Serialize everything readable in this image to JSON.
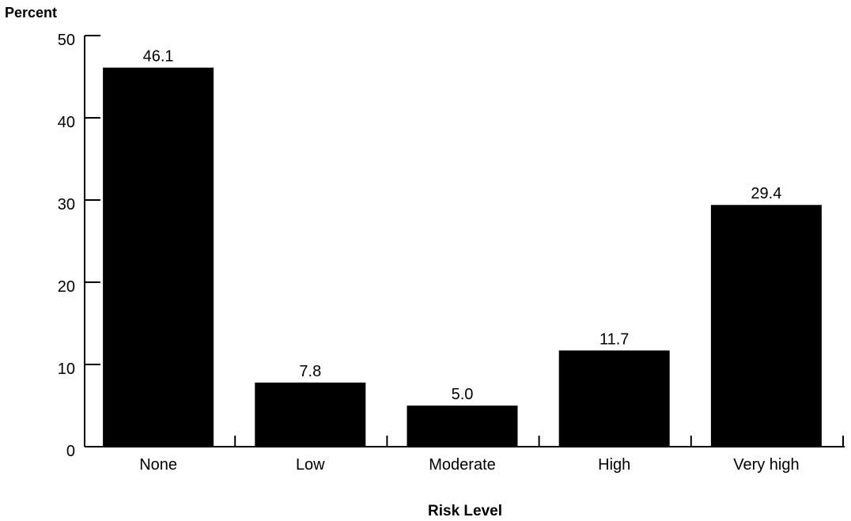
{
  "chart_data": {
    "type": "bar",
    "categories": [
      "None",
      "Low",
      "Moderate",
      "High",
      "Very high"
    ],
    "values": [
      46.1,
      7.8,
      5.0,
      11.7,
      29.4
    ],
    "value_labels": [
      "46.1",
      "7.8",
      "5.0",
      "11.7",
      "29.4"
    ],
    "ylabel": "Percent",
    "xlabel": "Risk Level",
    "ylim": [
      0,
      50
    ],
    "yticks": [
      "0",
      "10",
      "20",
      "30",
      "40",
      "50"
    ],
    "grid": false,
    "bar_color": "#000000"
  }
}
